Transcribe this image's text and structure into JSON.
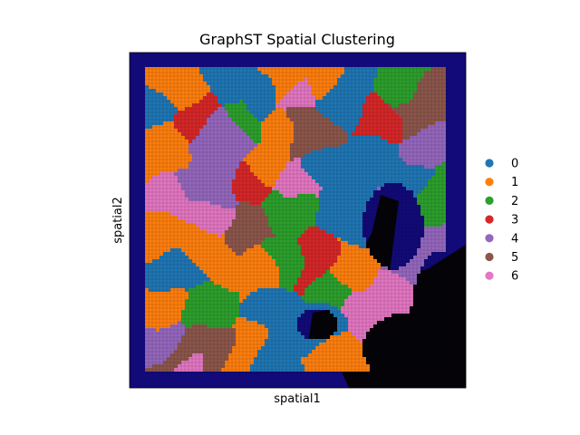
{
  "chart_data": {
    "type": "scatter",
    "title": "GraphST Spatial Clustering",
    "xlabel": "spatial1",
    "ylabel": "spatial2",
    "legend_position": "right",
    "grid": false,
    "background": "tissue-image",
    "clusters": [
      {
        "label": "0",
        "color": "#1f77b4"
      },
      {
        "label": "1",
        "color": "#ff7f0e"
      },
      {
        "label": "2",
        "color": "#2ca02c"
      },
      {
        "label": "3",
        "color": "#d62728"
      },
      {
        "label": "4",
        "color": "#9467bd"
      },
      {
        "label": "5",
        "color": "#8c564b"
      },
      {
        "label": "6",
        "color": "#e377c2"
      }
    ]
  }
}
